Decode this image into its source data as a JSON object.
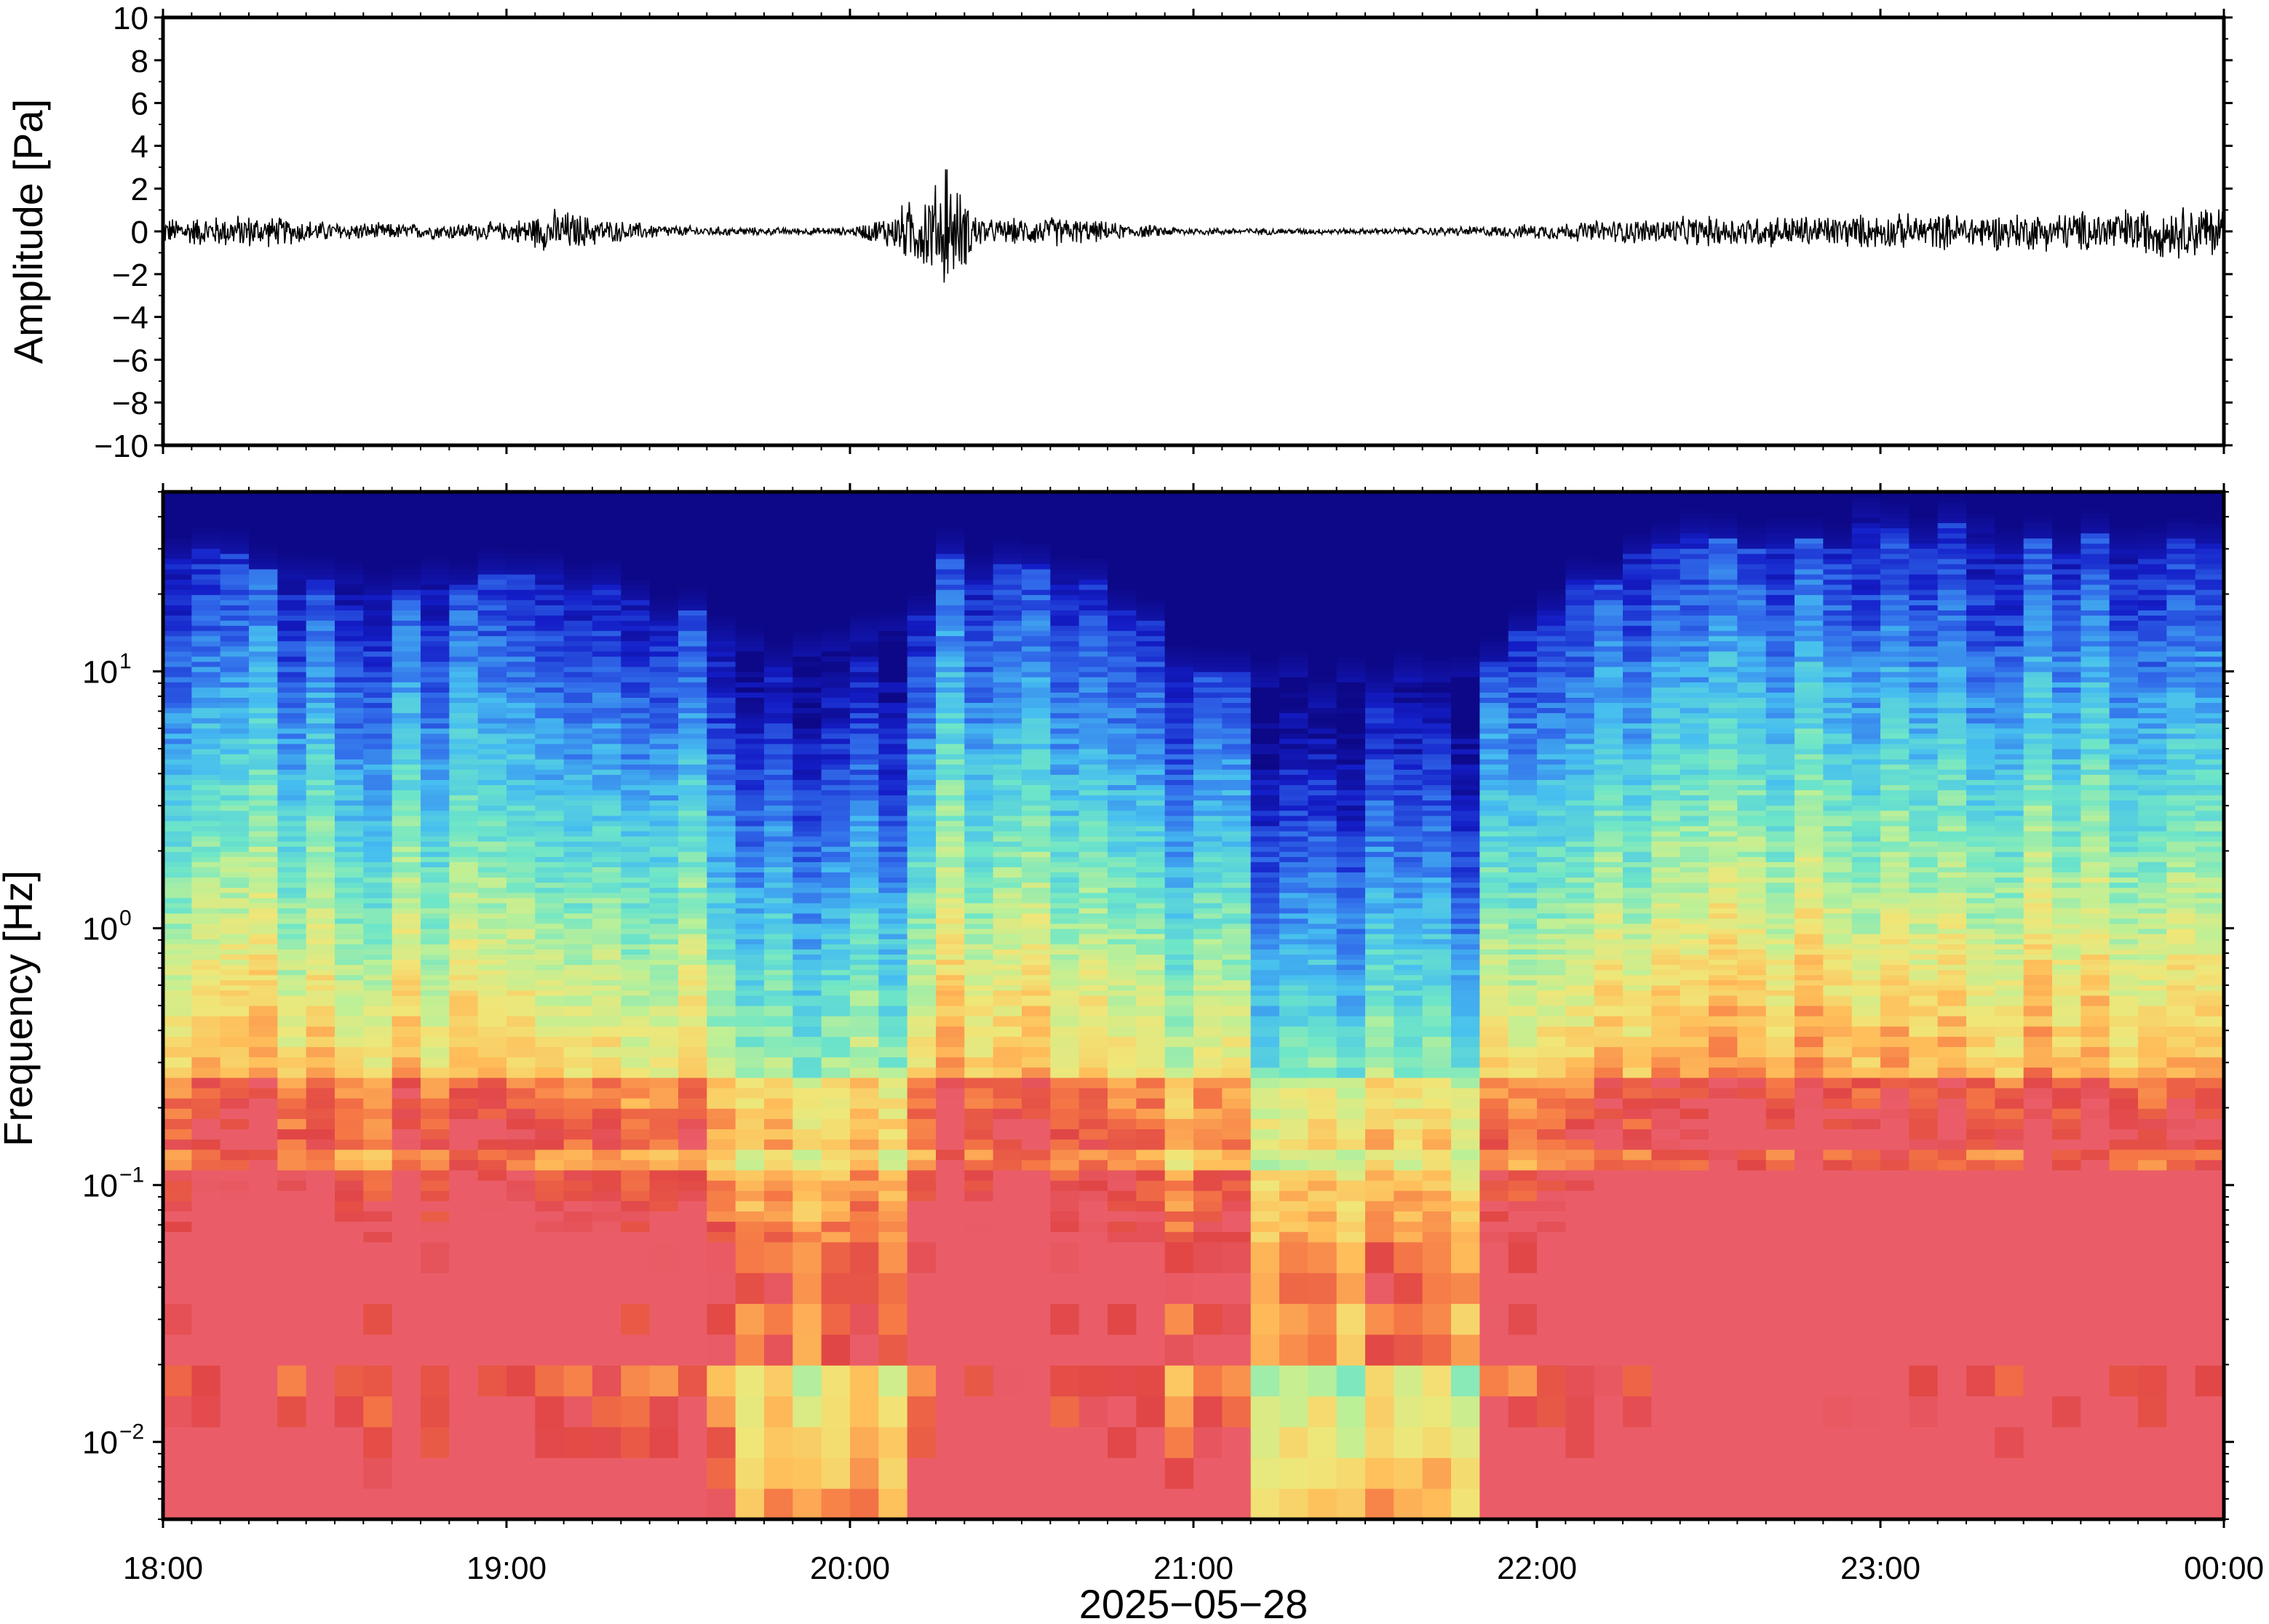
{
  "chart_data": [
    {
      "type": "line",
      "panel": "waveform",
      "ylabel": "Amplitude [Pa]",
      "ylim": [
        -10,
        10
      ],
      "yticks": [
        "10",
        "8",
        "6",
        "4",
        "2",
        "0",
        "−2",
        "−4",
        "−6",
        "−8",
        "−10"
      ],
      "ytick_values": [
        10,
        8,
        6,
        4,
        2,
        0,
        -2,
        -4,
        -6,
        -8,
        -10
      ],
      "x_hours": [
        18,
        24
      ],
      "envelope": [
        {
          "hour": 18.0,
          "amp": 0.7
        },
        {
          "hour": 18.25,
          "amp": 0.9
        },
        {
          "hour": 18.5,
          "amp": 0.5
        },
        {
          "hour": 18.75,
          "amp": 0.4
        },
        {
          "hour": 19.0,
          "amp": 0.5
        },
        {
          "hour": 19.15,
          "amp": 1.2
        },
        {
          "hour": 19.3,
          "amp": 0.6
        },
        {
          "hour": 19.5,
          "amp": 0.3
        },
        {
          "hour": 19.75,
          "amp": 0.2
        },
        {
          "hour": 20.0,
          "amp": 0.2
        },
        {
          "hour": 20.1,
          "amp": 0.8
        },
        {
          "hour": 20.28,
          "amp": 2.9
        },
        {
          "hour": 20.4,
          "amp": 0.6
        },
        {
          "hour": 20.6,
          "amp": 0.8
        },
        {
          "hour": 20.8,
          "amp": 0.4
        },
        {
          "hour": 21.0,
          "amp": 0.2
        },
        {
          "hour": 21.5,
          "amp": 0.15
        },
        {
          "hour": 21.9,
          "amp": 0.3
        },
        {
          "hour": 22.2,
          "amp": 0.6
        },
        {
          "hour": 22.5,
          "amp": 0.8
        },
        {
          "hour": 23.0,
          "amp": 0.9
        },
        {
          "hour": 23.5,
          "amp": 1.0
        },
        {
          "hour": 24.0,
          "amp": 1.5
        }
      ],
      "grid": false
    },
    {
      "type": "heatmap",
      "panel": "spectrogram",
      "ylabel": "Frequency [Hz]",
      "yscale": "log",
      "ylim": [
        0.005,
        50
      ],
      "yticks": [
        {
          "base": "10",
          "exp": "1",
          "value": 10
        },
        {
          "base": "10",
          "exp": "0",
          "value": 1
        },
        {
          "base": "10",
          "exp": "−1",
          "value": 0.1
        },
        {
          "base": "10",
          "exp": "−2",
          "value": 0.01
        }
      ],
      "xlabel": "2025−05−28",
      "xticks": [
        "18:00",
        "19:00",
        "20:00",
        "21:00",
        "22:00",
        "23:00",
        "00:00"
      ],
      "xtick_hours": [
        18,
        19,
        20,
        21,
        22,
        23,
        24
      ],
      "colormap": "rainbow (dark blue = low power, red = high power)",
      "high_freq_cutoff_hz": [
        {
          "hour": 18.0,
          "hz": 25
        },
        {
          "hour": 18.3,
          "hz": 28
        },
        {
          "hour": 18.6,
          "hz": 18
        },
        {
          "hour": 19.0,
          "hz": 25
        },
        {
          "hour": 19.4,
          "hz": 20
        },
        {
          "hour": 19.8,
          "hz": 10
        },
        {
          "hour": 20.2,
          "hz": 14
        },
        {
          "hour": 20.3,
          "hz": 28
        },
        {
          "hour": 20.7,
          "hz": 24
        },
        {
          "hour": 21.0,
          "hz": 10
        },
        {
          "hour": 21.5,
          "hz": 8
        },
        {
          "hour": 21.9,
          "hz": 12
        },
        {
          "hour": 22.3,
          "hz": 30
        },
        {
          "hour": 23.0,
          "hz": 35
        },
        {
          "hour": 24.0,
          "hz": 32
        }
      ],
      "grid": false
    }
  ]
}
